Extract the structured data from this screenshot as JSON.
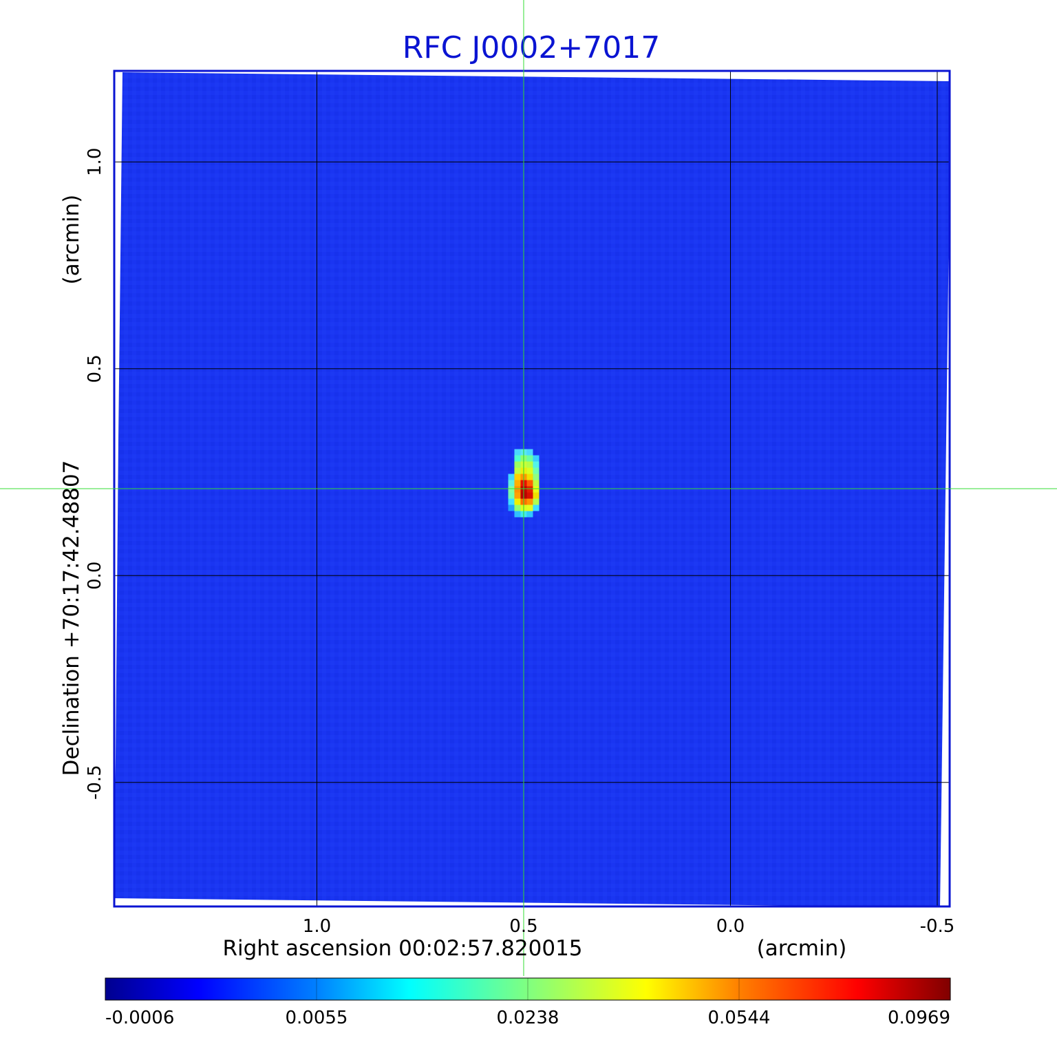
{
  "chart_data": {
    "type": "heatmap",
    "title": "RFC J0002+7017",
    "xlabel": "Right ascension  00:02:57.820015",
    "xlabel_unit": "(arcmin)",
    "ylabel": "Declination  +70:17:42.48807",
    "ylabel_unit": "(arcmin)",
    "x_ticks": [
      "1.0",
      "0.5",
      "0.0",
      "-0.5"
    ],
    "x_tick_values": [
      1.0,
      0.5,
      0.0,
      -0.5
    ],
    "y_ticks": [
      "1.0",
      "0.5",
      "0.0",
      "-0.5"
    ],
    "y_tick_values": [
      1.0,
      0.5,
      0.0,
      -0.5
    ],
    "xlim": [
      1.49,
      -0.53
    ],
    "ylim": [
      -0.8,
      1.22
    ],
    "grid": true,
    "crosshair": {
      "x": 0.5,
      "y": 0.21,
      "color": "#33dd33"
    },
    "source": {
      "x": 0.5,
      "y": 0.21,
      "peak_value": 0.0969
    },
    "colormap": "jet",
    "colorbar": {
      "tick_labels": [
        "-0.0006",
        "0.0055",
        "0.0238",
        "0.0544",
        "0.0969"
      ],
      "tick_values": [
        -0.0006,
        0.0055,
        0.0238,
        0.0544,
        0.0969
      ],
      "range": [
        -0.0006,
        0.0969
      ]
    },
    "colors": {
      "frame": "#0a14d2",
      "title": "#0a14d2",
      "background_map": "#1a35f2",
      "grid": "#000000"
    }
  }
}
